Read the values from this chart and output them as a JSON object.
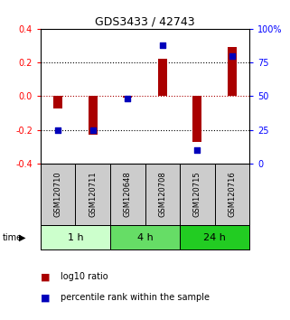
{
  "title": "GDS3433 / 42743",
  "samples": [
    "GSM120710",
    "GSM120711",
    "GSM120648",
    "GSM120708",
    "GSM120715",
    "GSM120716"
  ],
  "log10_ratio": [
    -0.07,
    -0.23,
    -0.01,
    0.22,
    -0.27,
    0.29
  ],
  "percentile_rank": [
    25,
    25,
    48,
    88,
    10,
    80
  ],
  "ylim_left": [
    -0.4,
    0.4
  ],
  "ylim_right": [
    0,
    100
  ],
  "yticks_left": [
    -0.4,
    -0.2,
    0.0,
    0.2,
    0.4
  ],
  "yticks_right": [
    0,
    25,
    50,
    75,
    100
  ],
  "ytick_labels_right": [
    "0",
    "25",
    "50",
    "75",
    "100%"
  ],
  "groups": [
    {
      "label": "1 h",
      "indices": [
        0,
        1
      ],
      "color": "#ccffcc"
    },
    {
      "label": "4 h",
      "indices": [
        2,
        3
      ],
      "color": "#66dd66"
    },
    {
      "label": "24 h",
      "indices": [
        4,
        5
      ],
      "color": "#22cc22"
    }
  ],
  "bar_color": "#aa0000",
  "square_color": "#0000bb",
  "bar_width": 0.25,
  "square_size": 25,
  "background_plot": "#ffffff",
  "background_sample_labels": "#cccccc",
  "legend_items": [
    "log10 ratio",
    "percentile rank within the sample"
  ],
  "time_label": "time"
}
